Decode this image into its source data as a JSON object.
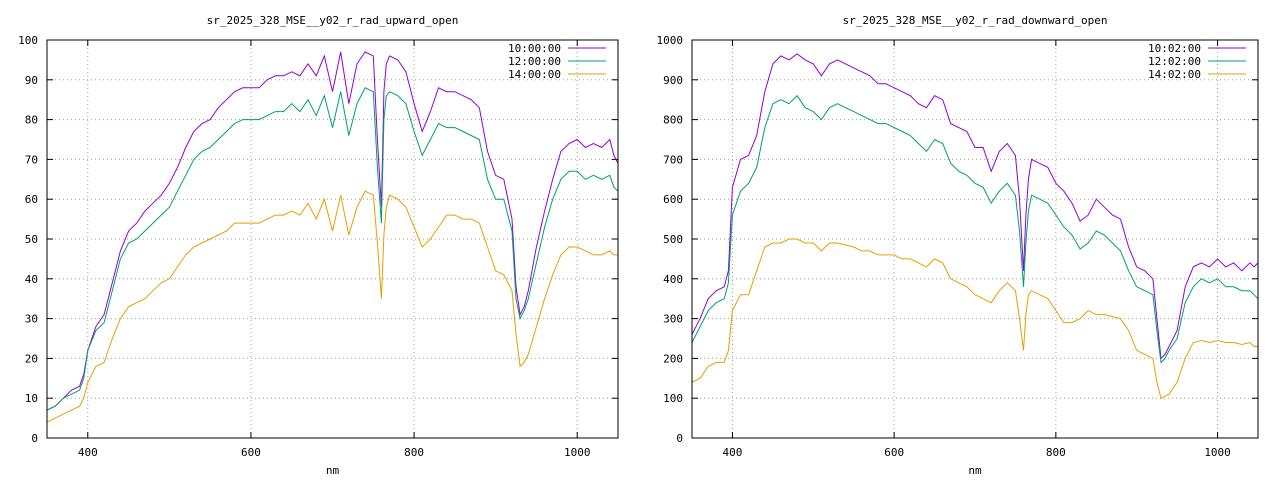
{
  "chart_data": [
    {
      "type": "line",
      "title": "sr_2025_328_MSE__y02_r_rad_upward_open",
      "xlabel": "nm",
      "ylabel": "",
      "xlim": [
        350,
        1050
      ],
      "ylim": [
        0,
        100
      ],
      "x_ticks": [
        400,
        600,
        800,
        1000
      ],
      "y_ticks": [
        0,
        10,
        20,
        30,
        40,
        50,
        60,
        70,
        80,
        90,
        100
      ],
      "grid": true,
      "legend_position": "top-right",
      "series": [
        {
          "name": "10:00:00",
          "color": "#9400d3",
          "x": [
            350,
            360,
            370,
            380,
            390,
            395,
            400,
            410,
            420,
            430,
            440,
            450,
            460,
            470,
            480,
            490,
            500,
            510,
            520,
            530,
            540,
            550,
            560,
            570,
            580,
            590,
            600,
            610,
            620,
            630,
            640,
            650,
            660,
            670,
            680,
            690,
            700,
            710,
            720,
            730,
            740,
            750,
            755,
            760,
            763,
            766,
            770,
            780,
            790,
            800,
            810,
            820,
            830,
            840,
            850,
            860,
            870,
            880,
            890,
            900,
            910,
            920,
            925,
            930,
            935,
            940,
            950,
            960,
            970,
            980,
            990,
            1000,
            1010,
            1020,
            1030,
            1040,
            1045,
            1050
          ],
          "y": [
            7,
            8,
            10,
            12,
            13,
            16,
            22,
            28,
            31,
            39,
            47,
            52,
            54,
            57,
            59,
            61,
            64,
            68,
            73,
            77,
            79,
            80,
            83,
            85,
            87,
            88,
            88,
            88,
            90,
            91,
            91,
            92,
            91,
            94,
            91,
            96,
            87,
            97,
            84,
            94,
            97,
            96,
            75,
            58,
            87,
            94,
            96,
            95,
            92,
            84,
            77,
            82,
            88,
            87,
            87,
            86,
            85,
            83,
            72,
            66,
            65,
            55,
            38,
            31,
            33,
            37,
            48,
            57,
            65,
            72,
            74,
            75,
            73,
            74,
            73,
            75,
            71,
            69
          ]
        },
        {
          "name": "12:00:00",
          "color": "#009e73",
          "x": [
            350,
            360,
            370,
            380,
            390,
            395,
            400,
            410,
            420,
            430,
            440,
            450,
            460,
            470,
            480,
            490,
            500,
            510,
            520,
            530,
            540,
            550,
            560,
            570,
            580,
            590,
            600,
            610,
            620,
            630,
            640,
            650,
            660,
            670,
            680,
            690,
            700,
            710,
            720,
            730,
            740,
            750,
            755,
            760,
            763,
            766,
            770,
            780,
            790,
            800,
            810,
            820,
            830,
            840,
            850,
            860,
            870,
            880,
            890,
            900,
            910,
            920,
            925,
            930,
            935,
            940,
            950,
            960,
            970,
            980,
            990,
            1000,
            1010,
            1020,
            1030,
            1040,
            1045,
            1050
          ],
          "y": [
            7,
            8,
            10,
            11,
            12,
            15,
            22,
            27,
            29,
            37,
            45,
            49,
            50,
            52,
            54,
            56,
            58,
            62,
            66,
            70,
            72,
            73,
            75,
            77,
            79,
            80,
            80,
            80,
            81,
            82,
            82,
            84,
            82,
            85,
            81,
            86,
            78,
            87,
            76,
            84,
            88,
            87,
            68,
            54,
            80,
            86,
            87,
            86,
            84,
            77,
            71,
            75,
            79,
            78,
            78,
            77,
            76,
            75,
            65,
            60,
            60,
            52,
            35,
            30,
            32,
            35,
            44,
            53,
            60,
            65,
            67,
            67,
            65,
            66,
            65,
            66,
            63,
            62
          ]
        },
        {
          "name": "14:00:00",
          "color": "#e69f00",
          "x": [
            350,
            360,
            370,
            380,
            390,
            395,
            400,
            410,
            420,
            430,
            440,
            450,
            460,
            470,
            480,
            490,
            500,
            510,
            520,
            530,
            540,
            550,
            560,
            570,
            580,
            590,
            600,
            610,
            620,
            630,
            640,
            650,
            660,
            670,
            680,
            690,
            700,
            710,
            720,
            730,
            740,
            750,
            755,
            760,
            763,
            766,
            770,
            780,
            790,
            800,
            810,
            820,
            830,
            840,
            850,
            860,
            870,
            880,
            890,
            900,
            910,
            920,
            925,
            930,
            935,
            940,
            950,
            960,
            970,
            980,
            990,
            1000,
            1010,
            1020,
            1030,
            1040,
            1045,
            1050
          ],
          "y": [
            4,
            5,
            6,
            7,
            8,
            10,
            14,
            18,
            19,
            25,
            30,
            33,
            34,
            35,
            37,
            39,
            40,
            43,
            46,
            48,
            49,
            50,
            51,
            52,
            54,
            54,
            54,
            54,
            55,
            56,
            56,
            57,
            56,
            59,
            55,
            60,
            52,
            61,
            51,
            58,
            62,
            61,
            49,
            35,
            51,
            58,
            61,
            60,
            58,
            53,
            48,
            50,
            53,
            56,
            56,
            55,
            55,
            54,
            48,
            42,
            41,
            37,
            26,
            18,
            19,
            21,
            28,
            35,
            41,
            46,
            48,
            48,
            47,
            46,
            46,
            47,
            46,
            46
          ]
        }
      ]
    },
    {
      "type": "line",
      "title": "sr_2025_328_MSE__y02_r_rad_downward_open",
      "xlabel": "nm",
      "ylabel": "",
      "xlim": [
        350,
        1050
      ],
      "ylim": [
        0,
        1000
      ],
      "x_ticks": [
        400,
        600,
        800,
        1000
      ],
      "y_ticks": [
        0,
        100,
        200,
        300,
        400,
        500,
        600,
        700,
        800,
        900,
        1000
      ],
      "grid": true,
      "legend_position": "top-right",
      "series": [
        {
          "name": "10:02:00",
          "color": "#9400d3",
          "x": [
            350,
            360,
            370,
            380,
            390,
            395,
            400,
            410,
            420,
            430,
            440,
            450,
            460,
            470,
            480,
            490,
            500,
            510,
            520,
            530,
            540,
            550,
            560,
            570,
            580,
            590,
            600,
            610,
            620,
            630,
            640,
            650,
            660,
            670,
            680,
            690,
            700,
            710,
            720,
            730,
            740,
            750,
            755,
            760,
            763,
            766,
            770,
            780,
            790,
            800,
            810,
            820,
            830,
            840,
            850,
            860,
            870,
            880,
            890,
            900,
            910,
            920,
            925,
            930,
            935,
            940,
            950,
            960,
            970,
            980,
            990,
            1000,
            1010,
            1020,
            1030,
            1040,
            1045,
            1050
          ],
          "y": [
            260,
            300,
            350,
            370,
            380,
            420,
            630,
            700,
            710,
            760,
            870,
            940,
            960,
            950,
            965,
            950,
            940,
            910,
            940,
            950,
            940,
            930,
            920,
            910,
            890,
            890,
            880,
            870,
            860,
            840,
            830,
            860,
            850,
            790,
            780,
            770,
            730,
            730,
            670,
            720,
            740,
            710,
            600,
            420,
            560,
            650,
            700,
            690,
            680,
            640,
            620,
            590,
            545,
            560,
            600,
            580,
            560,
            550,
            480,
            430,
            420,
            400,
            300,
            200,
            210,
            230,
            270,
            380,
            430,
            440,
            430,
            450,
            430,
            440,
            420,
            440,
            430,
            440
          ]
        },
        {
          "name": "12:02:00",
          "color": "#009e73",
          "x": [
            350,
            360,
            370,
            380,
            390,
            395,
            400,
            410,
            420,
            430,
            440,
            450,
            460,
            470,
            480,
            490,
            500,
            510,
            520,
            530,
            540,
            550,
            560,
            570,
            580,
            590,
            600,
            610,
            620,
            630,
            640,
            650,
            660,
            670,
            680,
            690,
            700,
            710,
            720,
            730,
            740,
            750,
            755,
            760,
            763,
            766,
            770,
            780,
            790,
            800,
            810,
            820,
            830,
            840,
            850,
            860,
            870,
            880,
            890,
            900,
            910,
            920,
            925,
            930,
            935,
            940,
            950,
            960,
            970,
            980,
            990,
            1000,
            1010,
            1020,
            1030,
            1040,
            1045,
            1050
          ],
          "y": [
            240,
            280,
            320,
            340,
            350,
            390,
            560,
            620,
            640,
            680,
            780,
            840,
            850,
            840,
            860,
            830,
            820,
            800,
            830,
            840,
            830,
            820,
            810,
            800,
            790,
            790,
            780,
            770,
            760,
            740,
            720,
            750,
            740,
            690,
            670,
            660,
            640,
            630,
            590,
            620,
            640,
            610,
            520,
            380,
            490,
            570,
            610,
            600,
            590,
            560,
            530,
            510,
            475,
            490,
            520,
            510,
            490,
            470,
            420,
            380,
            370,
            360,
            270,
            190,
            200,
            220,
            250,
            340,
            380,
            400,
            390,
            400,
            380,
            380,
            370,
            370,
            360,
            350
          ]
        },
        {
          "name": "14:02:00",
          "color": "#e69f00",
          "x": [
            350,
            360,
            370,
            380,
            390,
            395,
            400,
            410,
            420,
            430,
            440,
            450,
            460,
            470,
            480,
            490,
            500,
            510,
            520,
            530,
            540,
            550,
            560,
            570,
            580,
            590,
            600,
            610,
            620,
            630,
            640,
            650,
            660,
            670,
            680,
            690,
            700,
            710,
            720,
            730,
            740,
            750,
            755,
            760,
            763,
            766,
            770,
            780,
            790,
            800,
            810,
            820,
            830,
            840,
            850,
            860,
            870,
            880,
            890,
            900,
            910,
            920,
            925,
            930,
            935,
            940,
            950,
            960,
            970,
            980,
            990,
            1000,
            1010,
            1020,
            1030,
            1040,
            1045,
            1050
          ],
          "y": [
            140,
            150,
            180,
            190,
            190,
            220,
            320,
            360,
            360,
            420,
            480,
            490,
            490,
            500,
            500,
            490,
            490,
            470,
            490,
            490,
            485,
            480,
            470,
            470,
            460,
            460,
            460,
            450,
            450,
            440,
            430,
            450,
            440,
            400,
            390,
            380,
            360,
            350,
            340,
            370,
            390,
            370,
            300,
            220,
            310,
            360,
            370,
            360,
            350,
            320,
            290,
            290,
            300,
            320,
            310,
            310,
            305,
            300,
            270,
            220,
            210,
            200,
            140,
            100,
            105,
            110,
            140,
            200,
            240,
            245,
            240,
            245,
            240,
            240,
            235,
            240,
            230,
            230
          ]
        }
      ]
    }
  ]
}
